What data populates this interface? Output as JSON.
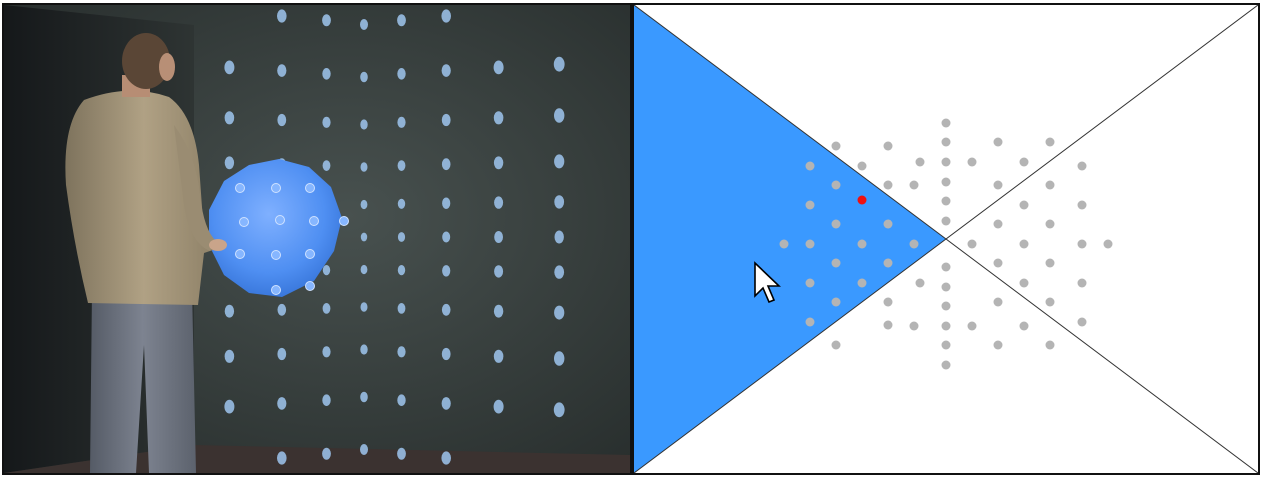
{
  "colors": {
    "background": "#ffffff",
    "frame_border": "#111111",
    "wall": "#3a4240",
    "floor": "#3b3230",
    "projected_dot": "#9fc6ee",
    "sphere_fill": "#4f8ff2",
    "sphere_highlight": "#86b6ff",
    "person_shirt": "#a39478",
    "person_jeans": "#6e7480",
    "triangle_fill": "#3a99ff",
    "grid_dot": "#b4b4b4",
    "selected_dot": "#ee1111",
    "line": "#333333",
    "cursor_fill": "#ffffff",
    "cursor_stroke": "#000000"
  },
  "photo": {
    "description_icon": "person-at-projection-wall",
    "highlight_shape": "sphere"
  },
  "diagram": {
    "shape": "hourglass-of-two-diagonals",
    "highlighted_region": "left-triangle",
    "cursor_icon": "mouse-pointer-arrow",
    "grid_dot_count": 68,
    "selected_dot_count": 1
  }
}
